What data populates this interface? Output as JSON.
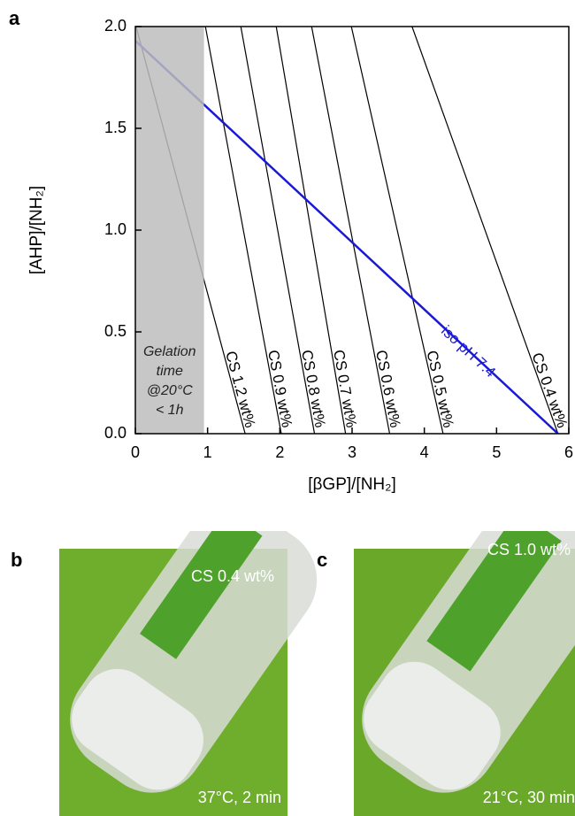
{
  "chart_data": {
    "type": "line",
    "panel_label": "a",
    "xlabel": "[βGP]/[NH₂]",
    "ylabel": "[AHP]/[NH₂]",
    "xlim": [
      0,
      6
    ],
    "ylim": [
      0,
      2
    ],
    "xticks": [
      0,
      1,
      2,
      3,
      4,
      5,
      6
    ],
    "yticks": [
      {
        "value": 0,
        "label": "0.0"
      },
      0.5,
      {
        "value": 1,
        "label": "1.0"
      },
      1.5,
      {
        "value": 2,
        "label": "2.0"
      }
    ],
    "shaded_region": {
      "xlim": [
        0,
        0.95
      ],
      "color": "#bdbdbd",
      "annotation": [
        "Gelation",
        "time",
        "@20°C",
        "< 1h"
      ]
    },
    "series": [
      {
        "name": "CS 1.2 wt%",
        "color": "#000000",
        "x": [
          0.01,
          1.52
        ],
        "y": [
          2,
          0
        ]
      },
      {
        "name": "CS 0.9 wt%",
        "color": "#000000",
        "x": [
          0.97,
          2.02
        ],
        "y": [
          2,
          0
        ]
      },
      {
        "name": "CS 0.8 wt%",
        "color": "#000000",
        "x": [
          1.46,
          2.48
        ],
        "y": [
          2,
          0
        ]
      },
      {
        "name": "CS 0.7 wt%",
        "color": "#000000",
        "x": [
          1.95,
          2.91
        ],
        "y": [
          2,
          0
        ]
      },
      {
        "name": "CS 0.6 wt%",
        "color": "#000000",
        "x": [
          2.44,
          3.52
        ],
        "y": [
          2,
          0
        ]
      },
      {
        "name": "CS 0.5 wt%",
        "color": "#000000",
        "x": [
          2.99,
          4.26
        ],
        "y": [
          2,
          0
        ]
      },
      {
        "name": "CS 0.4 wt%",
        "color": "#000000",
        "x": [
          3.83,
          5.85
        ],
        "y": [
          2,
          0
        ]
      },
      {
        "name": "iso pH 7.4",
        "color": "#1a1ad6",
        "x": [
          0,
          5.85
        ],
        "y": [
          1.93,
          0
        ]
      }
    ]
  },
  "photos": [
    {
      "label": "b",
      "top_text": "CS 0.4 wt%",
      "bottom_text": "37°C, 2 min"
    },
    {
      "label": "c",
      "top_text": "CS 1.0 wt%",
      "bottom_text": "21°C, 30 min"
    }
  ]
}
